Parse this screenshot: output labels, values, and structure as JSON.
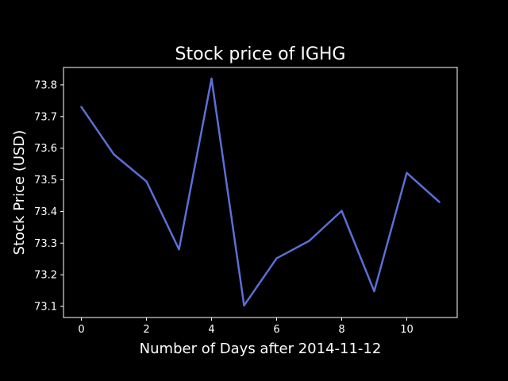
{
  "chart_data": {
    "type": "line",
    "title": "Stock price of IGHG",
    "xlabel": "Number of Days after 2014-11-12",
    "ylabel": "Stock Price (USD)",
    "xlim": [
      -0.55,
      11.55
    ],
    "ylim": [
      73.065,
      73.855
    ],
    "xticks": [
      0,
      2,
      4,
      6,
      8,
      10
    ],
    "xtick_labels": [
      "0",
      "2",
      "4",
      "6",
      "8",
      "10"
    ],
    "yticks": [
      73.1,
      73.2,
      73.3,
      73.4,
      73.5,
      73.6,
      73.7,
      73.8
    ],
    "ytick_labels": [
      "73.1",
      "73.2",
      "73.3",
      "73.4",
      "73.5",
      "73.6",
      "73.7",
      "73.8"
    ],
    "grid": false,
    "series": [
      {
        "color": "#5b6fd6",
        "x": [
          0,
          1,
          2,
          3,
          4,
          5,
          6,
          7,
          8,
          9,
          10,
          11
        ],
        "y": [
          73.73,
          73.58,
          73.495,
          73.28,
          73.82,
          73.103,
          73.252,
          73.307,
          73.402,
          73.148,
          73.522,
          73.43
        ]
      }
    ]
  },
  "colors": {
    "background": "#000000",
    "foreground": "#ffffff"
  }
}
